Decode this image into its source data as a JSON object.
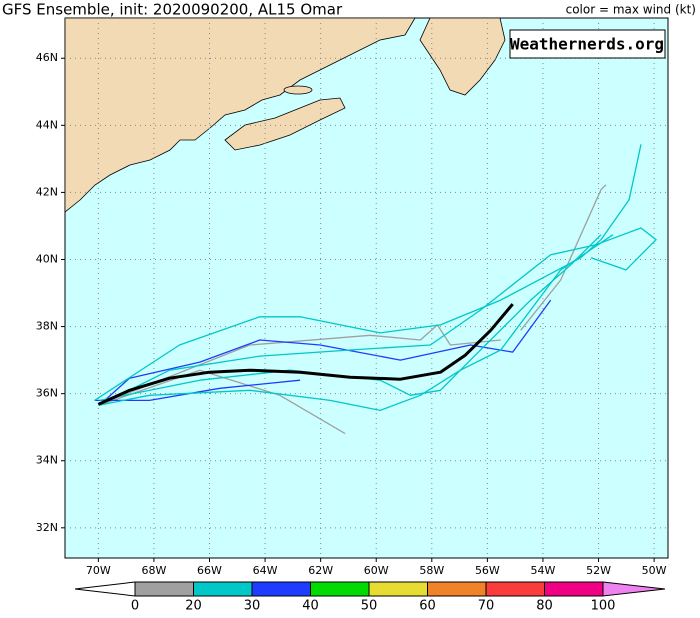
{
  "chart_data": {
    "type": "track-map",
    "title": "GFS Ensemble, init: 2020090200, AL15 Omar",
    "subtitle": "color = max wind (kt)",
    "credit": "Weathernerds.org",
    "xlim": [
      -71.2,
      -49.5
    ],
    "ylim": [
      31.1,
      47.2
    ],
    "xticks": [
      {
        "value": -70,
        "label": "70W"
      },
      {
        "value": -68,
        "label": "68W"
      },
      {
        "value": -66,
        "label": "66W"
      },
      {
        "value": -64,
        "label": "64W"
      },
      {
        "value": -62,
        "label": "62W"
      },
      {
        "value": -60,
        "label": "60W"
      },
      {
        "value": -58,
        "label": "58W"
      },
      {
        "value": -56,
        "label": "56W"
      },
      {
        "value": -54,
        "label": "54W"
      },
      {
        "value": -52,
        "label": "52W"
      },
      {
        "value": -50,
        "label": "50W"
      }
    ],
    "yticks": [
      {
        "value": 32,
        "label": "32N"
      },
      {
        "value": 34,
        "label": "34N"
      },
      {
        "value": 36,
        "label": "36N"
      },
      {
        "value": 38,
        "label": "38N"
      },
      {
        "value": 40,
        "label": "40N"
      },
      {
        "value": 42,
        "label": "42N"
      },
      {
        "value": 44,
        "label": "44N"
      },
      {
        "value": 46,
        "label": "46N"
      }
    ],
    "grid": true,
    "colorbar": {
      "bounds": [
        0,
        20,
        30,
        40,
        50,
        60,
        70,
        80,
        100
      ],
      "colors": [
        "#ffffff",
        "#a0a0a0",
        "#00c8c8",
        "#1e3cff",
        "#00dc00",
        "#e6dc32",
        "#f08228",
        "#fa3c3c",
        "#f00082",
        "#ee82ee"
      ]
    },
    "series": [
      {
        "color": "#a0a0a0",
        "lon": [
          -69.96,
          -66.35,
          -63.47,
          -61.12
        ],
        "lat": [
          35.66,
          36.7,
          35.95,
          34.81
        ]
      },
      {
        "color": "#a0a0a0",
        "lon": [
          -69.6,
          -64.55,
          -60.22,
          -58.41,
          -57.8,
          -57.33,
          -55.52
        ],
        "lat": [
          35.8,
          37.45,
          37.74,
          37.6,
          38.05,
          37.45,
          37.6
        ]
      },
      {
        "color": "#a0a0a0",
        "lon": [
          -54.8,
          -53.36,
          -51.91,
          -51.73
        ],
        "lat": [
          37.89,
          39.39,
          42.08,
          42.23
        ]
      },
      {
        "color": "#1e3cff",
        "lon": [
          -69.96,
          -68.88,
          -66.35,
          -64.19,
          -62.02,
          -59.13,
          -56.61,
          -55.09,
          -53.72
        ],
        "lat": [
          35.66,
          36.46,
          36.94,
          37.6,
          37.45,
          37.0,
          37.45,
          37.24,
          38.79
        ]
      },
      {
        "color": "#1e3cff",
        "lon": [
          -70.14,
          -68.16,
          -65.63,
          -62.74
        ],
        "lat": [
          35.8,
          35.8,
          36.16,
          36.4
        ]
      },
      {
        "color": "#00c8c8",
        "lon": [
          -70.14,
          -67.08,
          -64.19,
          -62.74,
          -59.86,
          -57.69,
          -55.52,
          -52.64,
          -51.91,
          -50.9,
          -50.47
        ],
        "lat": [
          35.8,
          37.45,
          38.29,
          38.29,
          37.81,
          38.05,
          38.79,
          40.05,
          40.59,
          41.78,
          43.43
        ]
      },
      {
        "color": "#00c8c8",
        "lon": [
          -69.96,
          -67.44,
          -64.19,
          -60.94,
          -58.05,
          -56.25,
          -53.72,
          -52.09,
          -50.47,
          -49.93,
          -51.01,
          -52.27
        ],
        "lat": [
          35.66,
          36.7,
          37.12,
          37.3,
          37.45,
          38.49,
          40.14,
          40.44,
          40.94,
          40.59,
          39.69,
          40.05
        ]
      },
      {
        "color": "#00c8c8",
        "lon": [
          -69.96,
          -68.16,
          -64.55,
          -61.66,
          -59.86,
          -58.41,
          -56.97,
          -55.52,
          -53.36,
          -51.48
        ],
        "lat": [
          35.66,
          35.95,
          36.1,
          35.8,
          35.5,
          35.95,
          36.7,
          37.3,
          39.69,
          40.74
        ]
      },
      {
        "color": "#00c8c8",
        "lon": [
          -69.96,
          -66.35,
          -63.11,
          -59.86,
          -58.77,
          -57.69,
          -56.61,
          -54.44,
          -53.0,
          -51.91
        ],
        "lat": [
          35.8,
          36.4,
          36.7,
          36.4,
          35.95,
          36.1,
          37.0,
          38.79,
          39.84,
          40.74
        ]
      },
      {
        "color": "#000000",
        "lon": [
          -70.0,
          -68.88,
          -67.44,
          -66.0,
          -64.55,
          -62.74,
          -60.94,
          -59.13,
          -57.69,
          -56.79,
          -55.88,
          -55.09
        ],
        "lat": [
          35.68,
          36.1,
          36.46,
          36.64,
          36.7,
          36.64,
          36.49,
          36.43,
          36.64,
          37.15,
          37.89,
          38.67
        ]
      }
    ]
  }
}
